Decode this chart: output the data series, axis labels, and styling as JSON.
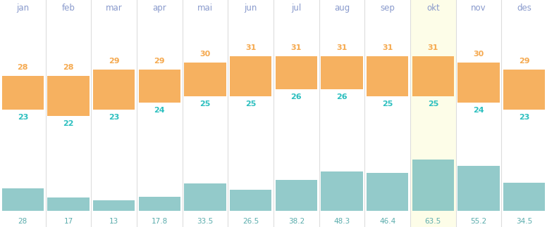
{
  "months": [
    "jan",
    "feb",
    "mar",
    "apr",
    "mai",
    "jun",
    "jul",
    "aug",
    "sep",
    "okt",
    "nov",
    "des"
  ],
  "temp_min": [
    23,
    22,
    23,
    24,
    25,
    25,
    26,
    26,
    25,
    25,
    24,
    23
  ],
  "temp_max": [
    28,
    28,
    29,
    29,
    30,
    31,
    31,
    31,
    31,
    31,
    30,
    29
  ],
  "rainfall": [
    28,
    17,
    13,
    17.8,
    33.5,
    26.5,
    38.2,
    48.3,
    46.4,
    63.5,
    55.2,
    34.5
  ],
  "highlight_month": 9,
  "highlight_bg": "#fdfde8",
  "col_bg": "#ffffff",
  "chart_bg": "#f0f0f0",
  "orange_color": "#f5a94f",
  "teal_color": "#7bbfbf",
  "month_label_color": "#8899cc",
  "temp_min_color": "#2bbfbf",
  "temp_max_color": "#f5a94f",
  "rainfall_label_color": "#5aacac",
  "temp_display_min": 19,
  "temp_display_max": 36,
  "rain_display_max": 75
}
